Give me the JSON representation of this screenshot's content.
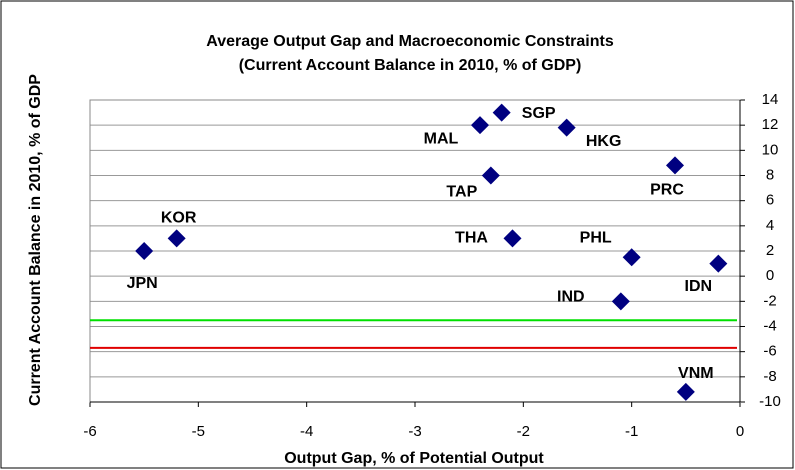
{
  "chart_data": {
    "type": "scatter",
    "title": "Average Output Gap and Macroeconomic Constraints",
    "subtitle": "(Current Account Balance in 2010, % of GDP)",
    "x_label": "Output Gap, % of Potential Output",
    "y_label": "Current Account Balance  in 2010, % of GDP",
    "x": [
      -5.5,
      -5.2,
      -2.4,
      -2.2,
      -1.6,
      -2.3,
      -2.1,
      -0.6,
      -1.0,
      -1.1,
      -0.2,
      -0.5
    ],
    "values": [
      2,
      3,
      12,
      13,
      11.8,
      8,
      3,
      8.8,
      1.5,
      -2,
      1,
      -9.2
    ],
    "point_labels": [
      "JPN",
      "KOR",
      "MAL",
      "SGP",
      "HKG",
      "TAP",
      "THA",
      "PRC",
      "PHL",
      "IND",
      "IDN",
      "VNM"
    ],
    "color": "#000080",
    "reference_lines": [
      {
        "value": -3.5,
        "color": "#00e000"
      },
      {
        "value": -5.7,
        "color": "#e00000"
      }
    ],
    "xlim": [
      -6,
      0
    ],
    "xticks": [
      -6,
      -5,
      -4,
      -3,
      -2,
      -1,
      0
    ],
    "ylim": [
      -10,
      14
    ],
    "yticks": [
      -10,
      -8,
      -6,
      -4,
      -2,
      0,
      2,
      4,
      6,
      8,
      10,
      12,
      14
    ],
    "y_axis_side": "right",
    "grid": true
  }
}
